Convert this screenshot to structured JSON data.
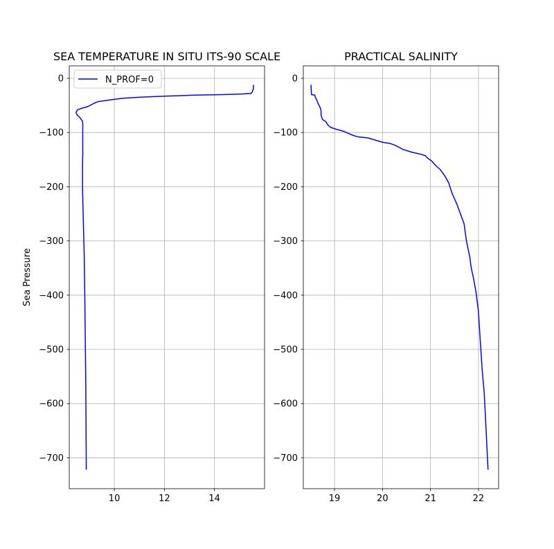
{
  "chart_data": [
    {
      "type": "line",
      "title": "SEA TEMPERATURE IN SITU ITS-90 SCALE",
      "xlabel": "",
      "ylabel": "Sea Pressure",
      "xlim": [
        8.2,
        16.0
      ],
      "ylim": [
        -757,
        23
      ],
      "xticks": [
        "10",
        "12",
        "14"
      ],
      "xtick_values": [
        10,
        12,
        14
      ],
      "yticks": [
        "0",
        "−100",
        "−200",
        "−300",
        "−400",
        "−500",
        "−600",
        "−700"
      ],
      "ytick_values": [
        0,
        -100,
        -200,
        -300,
        -400,
        -500,
        -600,
        -700
      ],
      "grid": true,
      "legend": "upper-left",
      "color": "#0000ff",
      "series": [
        {
          "name": "N_PROF=0",
          "x": [
            15.56,
            15.55,
            15.5,
            15.45,
            15.1,
            14.3,
            13.2,
            12.0,
            10.95,
            10.3,
            9.8,
            9.35,
            9.15,
            8.95,
            8.72,
            8.53,
            8.47,
            8.52,
            8.62,
            8.68,
            8.73,
            8.74,
            8.74,
            8.74,
            8.74,
            8.73,
            8.73,
            8.73,
            8.76,
            8.8,
            8.82,
            8.84,
            8.86,
            8.87,
            8.88
          ],
          "y": [
            -12,
            -20,
            -26,
            -28,
            -29,
            -30,
            -31,
            -33,
            -35,
            -37,
            -40,
            -43,
            -47,
            -52,
            -55,
            -58,
            -63,
            -68,
            -72,
            -76,
            -79,
            -85,
            -100,
            -120,
            -140,
            -160,
            -180,
            -200,
            -260,
            -330,
            -400,
            -480,
            -560,
            -640,
            -722
          ]
        }
      ]
    },
    {
      "type": "line",
      "title": "PRACTICAL SALINITY",
      "xlabel": "",
      "ylabel": "",
      "xlim": [
        18.35,
        22.42
      ],
      "ylim": [
        -757,
        23
      ],
      "xticks": [
        "19",
        "20",
        "21",
        "22"
      ],
      "xtick_values": [
        19,
        20,
        21,
        22
      ],
      "yticks": [
        "0",
        "−100",
        "−200",
        "−300",
        "−400",
        "−500",
        "−600",
        "−700"
      ],
      "ytick_values": [
        0,
        -100,
        -200,
        -300,
        -400,
        -500,
        -600,
        -700
      ],
      "grid": true,
      "color": "#0000ff",
      "series": [
        {
          "x": [
            18.51,
            18.52,
            18.59,
            18.6,
            18.63,
            18.66,
            18.69,
            18.71,
            18.72,
            18.72,
            18.75,
            18.82,
            18.86,
            18.91,
            19.0,
            19.2,
            19.35,
            19.45,
            19.5,
            19.7,
            19.85,
            20.0,
            20.15,
            20.25,
            20.32,
            20.42,
            20.6,
            20.8,
            20.9,
            20.95,
            21.02,
            21.1,
            21.2,
            21.3,
            21.38,
            21.45,
            21.55,
            21.65,
            21.7,
            21.75,
            21.82,
            21.85,
            21.9,
            21.95,
            22.0,
            22.02,
            22.05,
            22.08,
            22.12,
            22.16,
            22.2
          ],
          "y": [
            -12,
            -30,
            -31,
            -35,
            -40,
            -47,
            -52,
            -56,
            -60,
            -68,
            -76,
            -80,
            -86,
            -90,
            -93,
            -98,
            -104,
            -107,
            -108,
            -110,
            -114,
            -118,
            -120,
            -123,
            -126,
            -131,
            -136,
            -140,
            -143,
            -148,
            -152,
            -160,
            -168,
            -180,
            -193,
            -212,
            -232,
            -256,
            -268,
            -300,
            -330,
            -350,
            -370,
            -395,
            -430,
            -460,
            -500,
            -540,
            -580,
            -650,
            -722
          ]
        }
      ]
    }
  ]
}
